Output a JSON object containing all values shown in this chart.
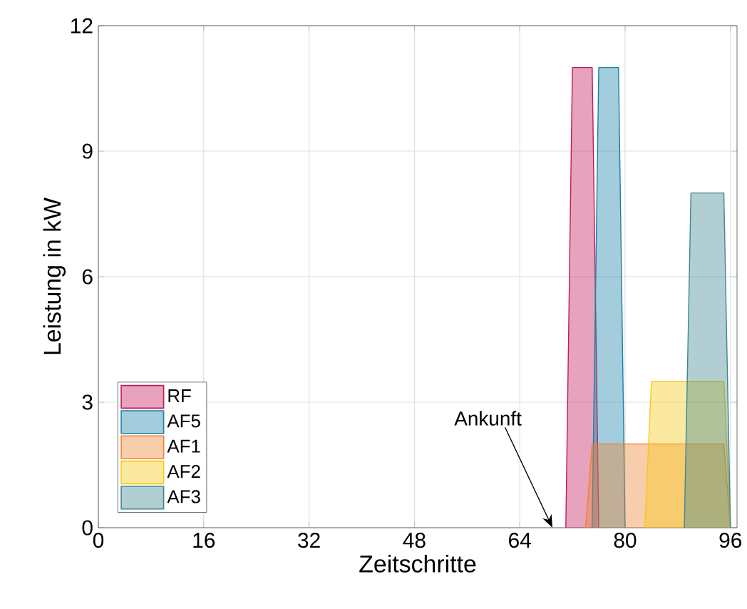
{
  "chart_data": {
    "type": "area",
    "xlabel": "Zeitschritte",
    "ylabel": "Leistung in kW",
    "xlim": [
      0,
      97
    ],
    "ylim": [
      0,
      12
    ],
    "xticks": [
      0,
      16,
      32,
      48,
      64,
      80,
      96
    ],
    "yticks": [
      0,
      3,
      6,
      9,
      12
    ],
    "grid": true,
    "legend": "bottom left",
    "annotations": [
      "Ankunft"
    ],
    "series": [
      {
        "name": "RF",
        "color": "#c2185b",
        "x": [
          71,
          72,
          75,
          76
        ],
        "values": [
          0,
          11,
          11,
          0
        ]
      },
      {
        "name": "AF5",
        "color": "#1a7fa8",
        "x": [
          75,
          76,
          79,
          80
        ],
        "values": [
          0,
          11,
          11,
          0
        ]
      },
      {
        "name": "AF1",
        "color": "#ee8230",
        "x": [
          74,
          75,
          95,
          96
        ],
        "values": [
          0,
          2,
          2,
          0
        ]
      },
      {
        "name": "AF2",
        "color": "#f7c815",
        "x": [
          83,
          84,
          95,
          96
        ],
        "values": [
          0,
          3.5,
          3.5,
          0
        ]
      },
      {
        "name": "AF3",
        "color": "#3d8790",
        "x": [
          89,
          90,
          95,
          96
        ],
        "values": [
          0,
          8,
          8,
          0
        ]
      }
    ]
  }
}
